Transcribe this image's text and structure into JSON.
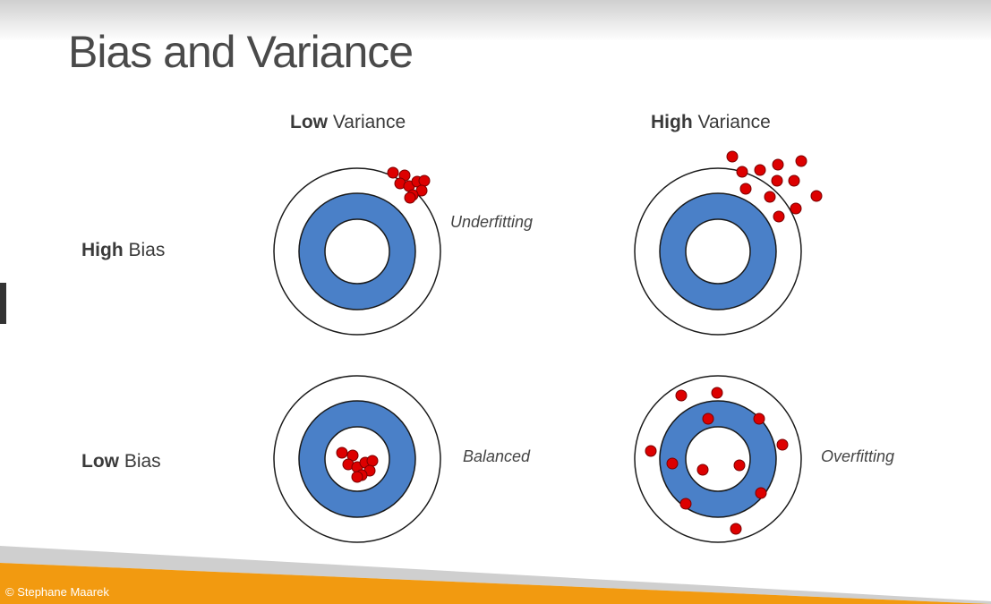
{
  "slide": {
    "title": "Bias and Variance",
    "footer": "© Stephane Maarek"
  },
  "columns": [
    {
      "bold": "Low",
      "rest": " Variance"
    },
    {
      "bold": "High",
      "rest": " Variance"
    }
  ],
  "rows": [
    {
      "bold": "High",
      "rest": " Bias"
    },
    {
      "bold": "Low",
      "rest": " Bias"
    }
  ],
  "annotations": {
    "high_bias_low_variance": "Underfitting",
    "low_bias_low_variance": "Balanced",
    "low_bias_high_variance": "Overfitting"
  },
  "colors": {
    "ring_blue": "#4a80c8",
    "dot_red": "#dd0000",
    "band_orange": "#f29a10",
    "band_gray": "#cfcfcf"
  }
}
